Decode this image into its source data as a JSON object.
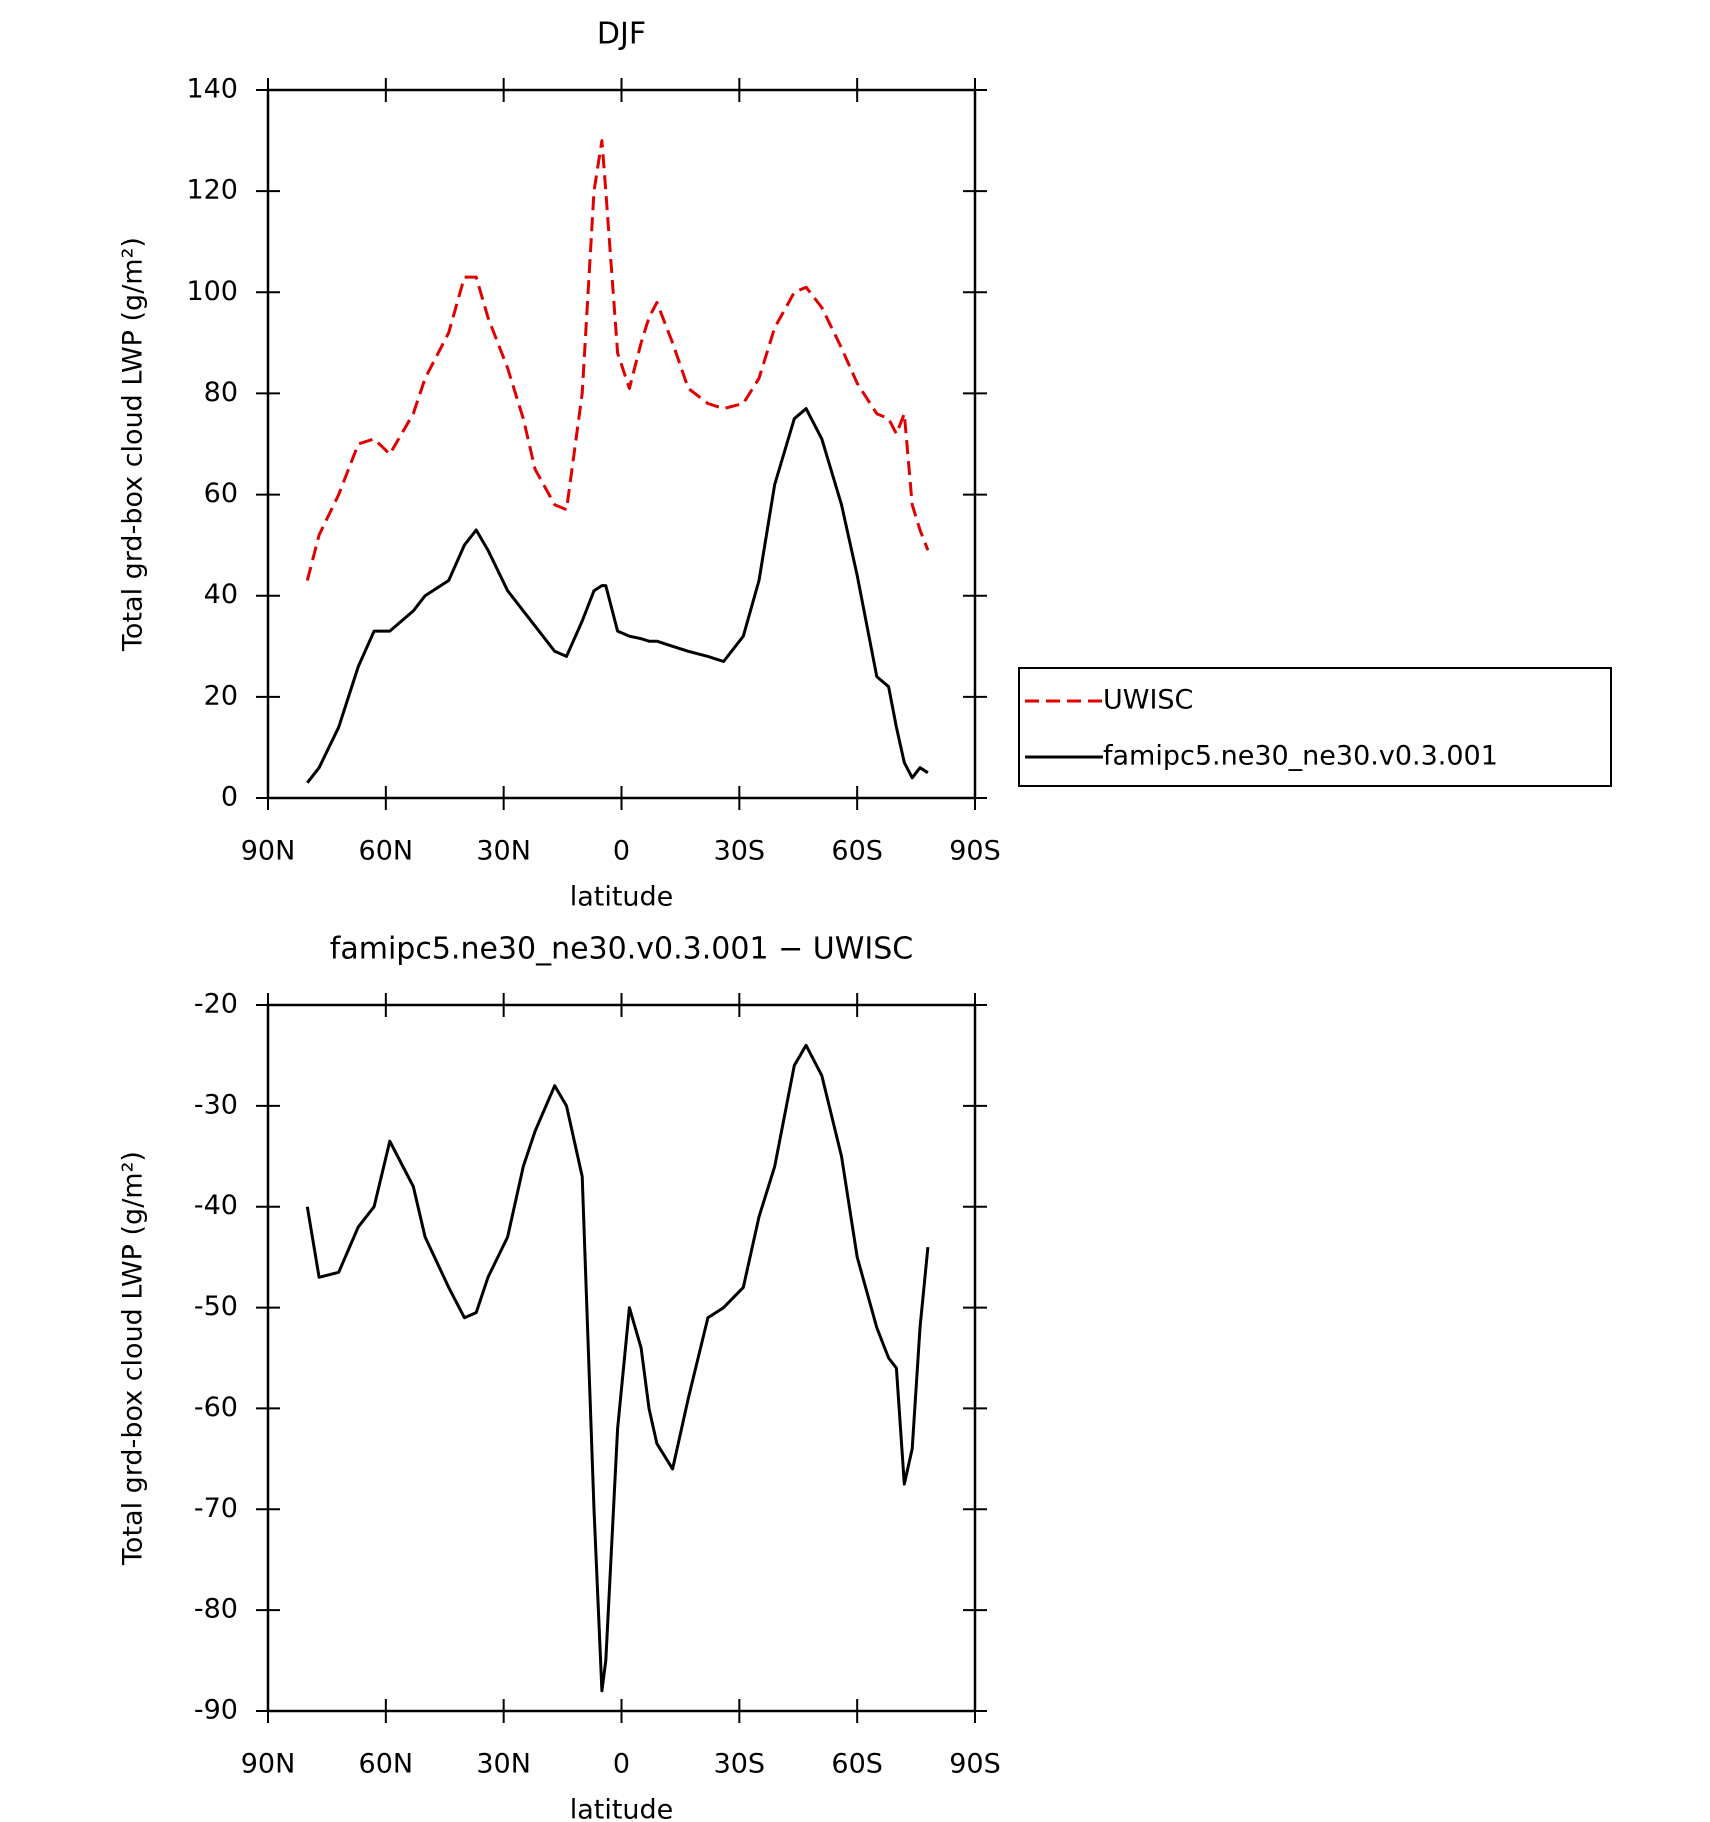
{
  "chart_data": [
    {
      "type": "line",
      "title": "DJF",
      "xlabel": "latitude",
      "ylabel": "Total grd-box cloud LWP (g/m²)",
      "x": [
        80,
        77,
        72,
        67,
        63,
        59,
        53,
        50,
        44,
        40,
        37,
        34,
        29,
        25,
        22,
        17,
        14,
        10,
        7,
        5,
        4,
        1,
        -2,
        -5,
        -7,
        -9,
        -13,
        -17,
        -22,
        -26,
        -31,
        -35,
        -39,
        -44,
        -47,
        -51,
        -56,
        -60,
        -65,
        -68,
        -70,
        -72,
        -74,
        -76,
        -78
      ],
      "series": [
        {
          "name": "UWISC",
          "color": "#e00000",
          "line_style": "dashed",
          "values": [
            43,
            52,
            60,
            70,
            71,
            68,
            76,
            83,
            92,
            103,
            103,
            95,
            85,
            75,
            65,
            58,
            57,
            80,
            120,
            130,
            120,
            88,
            81,
            90,
            95,
            98,
            90,
            81,
            78,
            77,
            78,
            83,
            93,
            100,
            101,
            97,
            89,
            82,
            76,
            75,
            72,
            76,
            58,
            53,
            49
          ]
        },
        {
          "name": "famipc5.ne30_ne30.v0.3.001",
          "color": "#000000",
          "line_style": "solid",
          "values": [
            3,
            6,
            14,
            26,
            33,
            33,
            37,
            40,
            43,
            50,
            53,
            49,
            41,
            37,
            34,
            29,
            28,
            35,
            41,
            42,
            42,
            33,
            32,
            31.5,
            31,
            31,
            30,
            29,
            28,
            27,
            32,
            43,
            62,
            75,
            77,
            71,
            58,
            44,
            24,
            22,
            14,
            7,
            4,
            6,
            5
          ]
        }
      ],
      "xlim": [
        90,
        -90
      ],
      "xticks": [
        {
          "value": 90,
          "label": "90N"
        },
        {
          "value": 60,
          "label": "60N"
        },
        {
          "value": 30,
          "label": "30N"
        },
        0,
        {
          "value": -30,
          "label": "30S"
        },
        {
          "value": -60,
          "label": "60S"
        },
        {
          "value": -90,
          "label": "90S"
        }
      ],
      "ylim": [
        0,
        140
      ],
      "yticks": [
        0,
        20,
        40,
        60,
        80,
        100,
        120,
        140
      ],
      "grid": false,
      "legend": "outside-right"
    },
    {
      "type": "line",
      "title": "famipc5.ne30_ne30.v0.3.001 − UWISC",
      "xlabel": "latitude",
      "ylabel": "Total grd-box cloud LWP (g/m²)",
      "x": [
        80,
        77,
        72,
        67,
        63,
        59,
        53,
        50,
        44,
        40,
        37,
        34,
        29,
        25,
        22,
        17,
        14,
        10,
        7,
        5,
        4,
        1,
        -2,
        -5,
        -7,
        -9,
        -13,
        -17,
        -22,
        -26,
        -31,
        -35,
        -39,
        -44,
        -47,
        -51,
        -56,
        -60,
        -65,
        -68,
        -70,
        -72,
        -74,
        -76,
        -78
      ],
      "series": [
        {
          "color": "#000000",
          "line_style": "solid",
          "values": [
            -40,
            -47,
            -46.5,
            -42,
            -40,
            -33.5,
            -38,
            -43,
            -48,
            -51,
            -50.5,
            -47,
            -43,
            -36,
            -32.5,
            -28,
            -30,
            -37,
            -70,
            -88,
            -85,
            -62,
            -50,
            -54,
            -60,
            -63.5,
            -66,
            -59,
            -51,
            -50,
            -48,
            -41,
            -36,
            -26,
            -24,
            -27,
            -35,
            -45,
            -52,
            -55,
            -56,
            -67.5,
            -64,
            -52,
            -44
          ]
        }
      ],
      "xlim": [
        90,
        -90
      ],
      "xticks": [
        {
          "value": 90,
          "label": "90N"
        },
        {
          "value": 60,
          "label": "60N"
        },
        {
          "value": 30,
          "label": "30N"
        },
        0,
        {
          "value": -30,
          "label": "30S"
        },
        {
          "value": -60,
          "label": "60S"
        },
        {
          "value": -90,
          "label": "90S"
        }
      ],
      "ylim": [
        -90,
        -20
      ],
      "yticks": [
        -90,
        -80,
        -70,
        -60,
        -50,
        -40,
        -30,
        -20
      ],
      "grid": false
    }
  ]
}
